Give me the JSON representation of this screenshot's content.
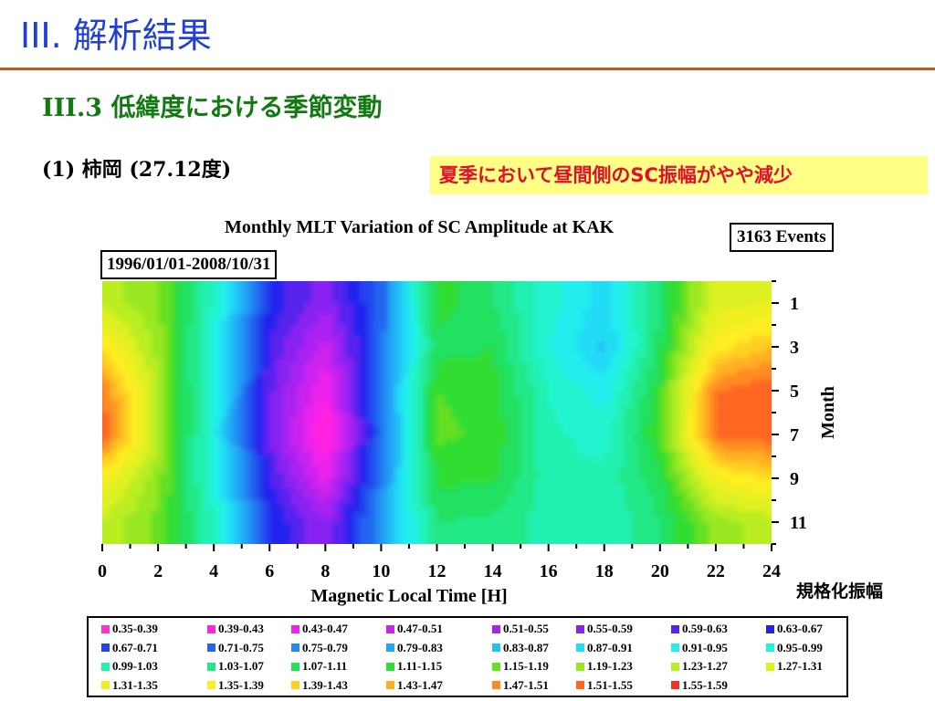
{
  "slide": {
    "title": "III. 解析結果",
    "subtitle": "III.3 低緯度における季節変動",
    "location": "(1) 柿岡 (27.12度)",
    "note": "夏季において昼間側のSC振幅がやや減少",
    "scale_label": "規格化振幅"
  },
  "colors": {
    "title": "#1f3fd6",
    "subtitle": "#117a11",
    "note_text": "#e0102a",
    "note_bg": "#ffff88",
    "rule": "#b35c2a"
  },
  "chart_data": {
    "type": "heatmap",
    "title": "Monthly MLT Variation of SC Amplitude at KAK",
    "period": "1996/01/01-2008/10/31",
    "events": "3163 Events",
    "xlabel": "Magnetic Local Time [H]",
    "ylabel": "Month",
    "xlim": [
      0,
      24
    ],
    "ylim": [
      0,
      12
    ],
    "y_inverted": true,
    "x_ticks": [
      0,
      2,
      4,
      6,
      8,
      10,
      12,
      14,
      16,
      18,
      20,
      22,
      24
    ],
    "y_ticks": [
      1,
      3,
      5,
      7,
      9,
      11
    ],
    "x": [
      0,
      2,
      4,
      6,
      8,
      10,
      12,
      14,
      16,
      18,
      20,
      22,
      24
    ],
    "y": [
      1,
      3,
      5,
      7,
      9,
      11
    ],
    "z": [
      [
        1.25,
        1.2,
        0.98,
        0.66,
        0.56,
        0.72,
        1.13,
        1.07,
        0.97,
        0.89,
        1.07,
        1.29,
        1.31
      ],
      [
        1.39,
        1.21,
        0.95,
        0.62,
        0.49,
        0.73,
        1.09,
        1.11,
        0.95,
        0.86,
        1.09,
        1.37,
        1.43
      ],
      [
        1.51,
        1.24,
        0.94,
        0.6,
        0.43,
        0.75,
        1.15,
        1.13,
        0.99,
        0.93,
        1.13,
        1.51,
        1.55
      ],
      [
        1.55,
        1.25,
        0.93,
        0.59,
        0.38,
        0.73,
        1.16,
        1.14,
        1.0,
        0.97,
        1.15,
        1.52,
        1.54
      ],
      [
        1.35,
        1.2,
        0.95,
        0.63,
        0.45,
        0.76,
        1.12,
        1.12,
        1.01,
        1.0,
        1.1,
        1.35,
        1.39
      ],
      [
        1.26,
        1.18,
        0.99,
        0.67,
        0.55,
        0.79,
        1.07,
        1.06,
        1.01,
        0.99,
        1.07,
        1.21,
        1.25
      ]
    ],
    "legend": [
      {
        "label": "0.35-0.39",
        "color": "#ff33cc"
      },
      {
        "label": "0.39-0.43",
        "color": "#ff22e0"
      },
      {
        "label": "0.43-0.47",
        "color": "#ee22ee"
      },
      {
        "label": "0.47-0.51",
        "color": "#cc22ee"
      },
      {
        "label": "0.51-0.55",
        "color": "#aa22f2"
      },
      {
        "label": "0.55-0.59",
        "color": "#8822f2"
      },
      {
        "label": "0.59-0.63",
        "color": "#5522ee"
      },
      {
        "label": "0.63-0.67",
        "color": "#2222ee"
      },
      {
        "label": "0.67-0.71",
        "color": "#2244ee"
      },
      {
        "label": "0.71-0.75",
        "color": "#2266f0"
      },
      {
        "label": "0.75-0.79",
        "color": "#2288f2"
      },
      {
        "label": "0.79-0.83",
        "color": "#22a6f4"
      },
      {
        "label": "0.83-0.87",
        "color": "#22c0f6"
      },
      {
        "label": "0.87-0.91",
        "color": "#22dcf6"
      },
      {
        "label": "0.91-0.95",
        "color": "#22eeee"
      },
      {
        "label": "0.95-0.99",
        "color": "#22f4d0"
      },
      {
        "label": "0.99-1.03",
        "color": "#22f0b0"
      },
      {
        "label": "1.03-1.07",
        "color": "#22e888"
      },
      {
        "label": "1.07-1.11",
        "color": "#22e060"
      },
      {
        "label": "1.11-1.15",
        "color": "#33dd33"
      },
      {
        "label": "1.15-1.19",
        "color": "#66e022"
      },
      {
        "label": "1.19-1.23",
        "color": "#99e822"
      },
      {
        "label": "1.23-1.27",
        "color": "#bbee22"
      },
      {
        "label": "1.27-1.31",
        "color": "#ddf022"
      },
      {
        "label": "1.31-1.35",
        "color": "#eef022"
      },
      {
        "label": "1.35-1.39",
        "color": "#ffee22"
      },
      {
        "label": "1.39-1.43",
        "color": "#ffd022"
      },
      {
        "label": "1.43-1.47",
        "color": "#ffb022"
      },
      {
        "label": "1.47-1.51",
        "color": "#ff8c22"
      },
      {
        "label": "1.51-1.55",
        "color": "#ff6622"
      },
      {
        "label": "1.55-1.59",
        "color": "#ee3322"
      }
    ]
  }
}
